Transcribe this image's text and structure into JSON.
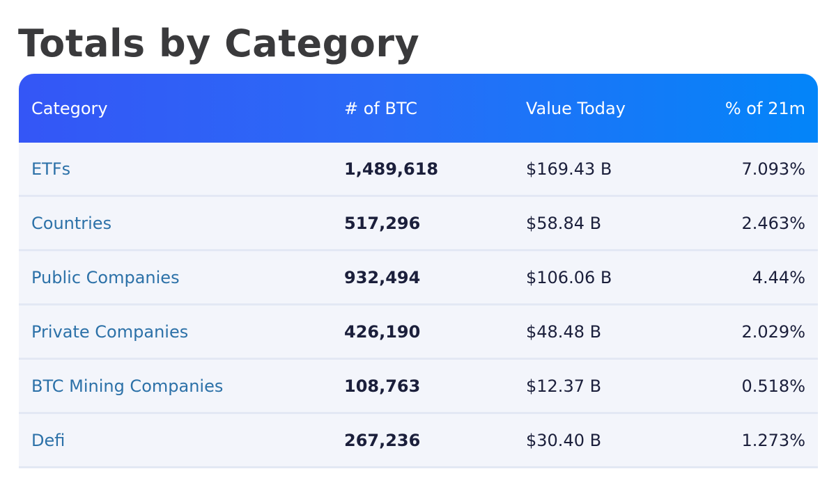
{
  "title": "Totals by Category",
  "table": {
    "headers": {
      "category": "Category",
      "btc": "# of BTC",
      "value": "Value Today",
      "percent": "% of 21m"
    },
    "rows": [
      {
        "category": "ETFs",
        "btc": "1,489,618",
        "value": "$169.43 B",
        "percent": "7.093%"
      },
      {
        "category": "Countries",
        "btc": "517,296",
        "value": "$58.84 B",
        "percent": "2.463%"
      },
      {
        "category": "Public Companies",
        "btc": "932,494",
        "value": "$106.06 B",
        "percent": "4.44%"
      },
      {
        "category": "Private Companies",
        "btc": "426,190",
        "value": "$48.48 B",
        "percent": "2.029%"
      },
      {
        "category": "BTC Mining Companies",
        "btc": "108,763",
        "value": "$12.37 B",
        "percent": "0.518%"
      },
      {
        "category": "Defi",
        "btc": "267,236",
        "value": "$30.40 B",
        "percent": "1.273%"
      }
    ]
  },
  "colors": {
    "header_gradient_start": "#3456f6",
    "header_gradient_end": "#0385f9",
    "category_link": "#2c71a8",
    "row_background": "#f3f5fb"
  }
}
